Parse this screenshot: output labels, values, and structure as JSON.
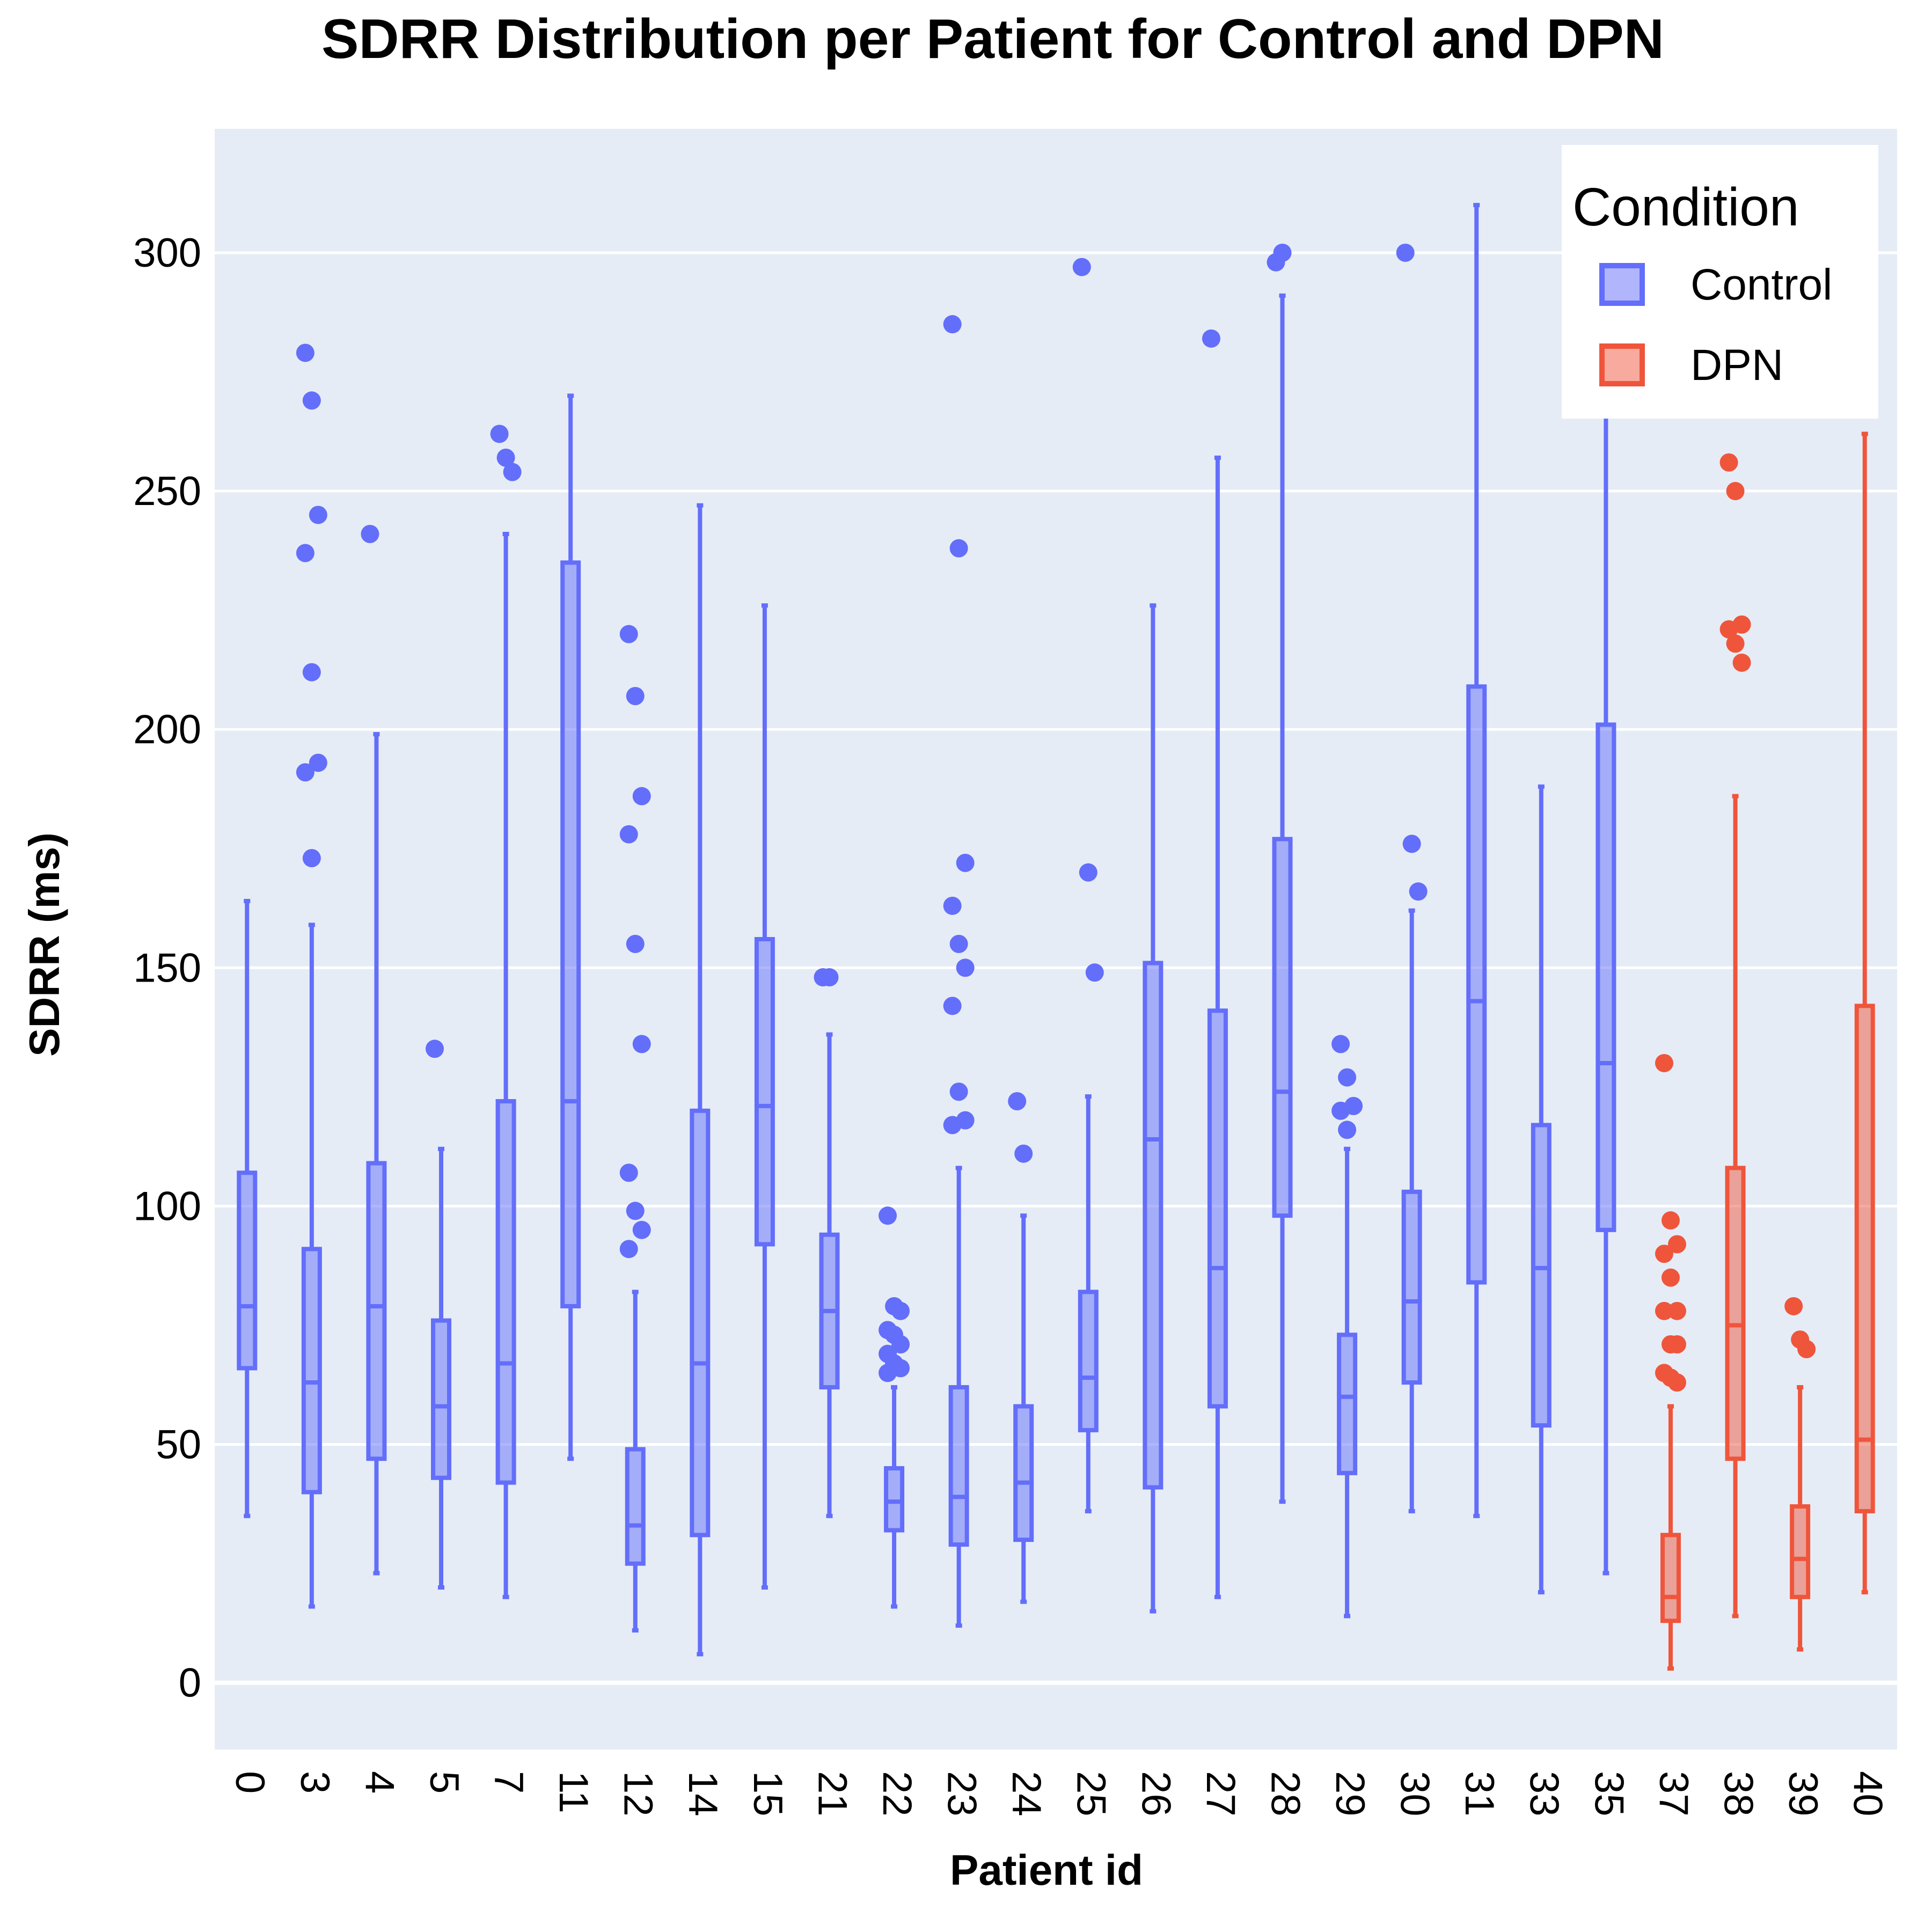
{
  "chart_data": {
    "type": "box",
    "title": "SDRR Distribution per Patient for Control and DPN",
    "xlabel": "Patient id",
    "ylabel": "SDRR (ms)",
    "ylim": [
      -14,
      326
    ],
    "yticks": [
      0,
      50,
      100,
      150,
      200,
      250,
      300
    ],
    "grid": true,
    "x_tick_rotation": 90,
    "legend": {
      "title": "Condition",
      "position": "top-right",
      "entries": [
        {
          "name": "Control",
          "color": "#636efa"
        },
        {
          "name": "DPN",
          "color": "#ef553b"
        }
      ]
    },
    "colors": {
      "Control": "#636efa",
      "DPN": "#ef553b",
      "plot_bg": "#e5ecf6",
      "grid": "#ffffff"
    },
    "categories": [
      "0",
      "3",
      "4",
      "5",
      "7",
      "11",
      "12",
      "14",
      "15",
      "21",
      "22",
      "23",
      "24",
      "25",
      "26",
      "27",
      "28",
      "29",
      "30",
      "31",
      "33",
      "35",
      "37",
      "38",
      "39",
      "40"
    ],
    "series": [
      {
        "name": "Control",
        "boxes": [
          {
            "x": "0",
            "min": 35,
            "q1": 66,
            "median": 79,
            "q3": 107,
            "max": 164,
            "outliers": []
          },
          {
            "x": "3",
            "min": 16,
            "q1": 40,
            "median": 63,
            "q3": 91,
            "max": 159,
            "outliers": [
              279,
              269,
              245,
              237,
              212,
              193,
              191,
              173
            ]
          },
          {
            "x": "4",
            "min": 23,
            "q1": 47,
            "median": 79,
            "q3": 109,
            "max": 199,
            "outliers": [
              241
            ]
          },
          {
            "x": "5",
            "min": 20,
            "q1": 43,
            "median": 58,
            "q3": 76,
            "max": 112,
            "outliers": [
              133
            ]
          },
          {
            "x": "7",
            "min": 18,
            "q1": 42,
            "median": 67,
            "q3": 122,
            "max": 241,
            "outliers": [
              262,
              257,
              254
            ]
          },
          {
            "x": "11",
            "min": 47,
            "q1": 79,
            "median": 122,
            "q3": 235,
            "max": 270,
            "outliers": []
          },
          {
            "x": "12",
            "min": 11,
            "q1": 25,
            "median": 33,
            "q3": 49,
            "max": 82,
            "outliers": [
              220,
              207,
              186,
              178,
              155,
              134,
              107,
              99,
              95,
              91
            ]
          },
          {
            "x": "14",
            "min": 6,
            "q1": 31,
            "median": 67,
            "q3": 120,
            "max": 247,
            "outliers": []
          },
          {
            "x": "15",
            "min": 20,
            "q1": 92,
            "median": 121,
            "q3": 156,
            "max": 226,
            "outliers": []
          },
          {
            "x": "21",
            "min": 35,
            "q1": 62,
            "median": 78,
            "q3": 94,
            "max": 136,
            "outliers": [
              148,
              148
            ]
          },
          {
            "x": "22",
            "min": 16,
            "q1": 32,
            "median": 38,
            "q3": 45,
            "max": 62,
            "outliers": [
              98,
              79,
              78,
              74,
              73,
              71,
              69,
              67,
              66,
              65
            ]
          },
          {
            "x": "23",
            "min": 12,
            "q1": 29,
            "median": 39,
            "q3": 62,
            "max": 108,
            "outliers": [
              285,
              238,
              172,
              163,
              155,
              150,
              142,
              124,
              118,
              117
            ]
          },
          {
            "x": "24",
            "min": 17,
            "q1": 30,
            "median": 42,
            "q3": 58,
            "max": 98,
            "outliers": [
              122,
              111
            ]
          },
          {
            "x": "25",
            "min": 36,
            "q1": 53,
            "median": 64,
            "q3": 82,
            "max": 123,
            "outliers": [
              297,
              170,
              149
            ]
          },
          {
            "x": "26",
            "min": 15,
            "q1": 41,
            "median": 114,
            "q3": 151,
            "max": 226,
            "outliers": []
          },
          {
            "x": "27",
            "min": 18,
            "q1": 58,
            "median": 87,
            "q3": 141,
            "max": 257,
            "outliers": [
              282
            ]
          },
          {
            "x": "28",
            "min": 38,
            "q1": 98,
            "median": 124,
            "q3": 177,
            "max": 291,
            "outliers": [
              298,
              300
            ]
          },
          {
            "x": "29",
            "min": 14,
            "q1": 44,
            "median": 60,
            "q3": 73,
            "max": 112,
            "outliers": [
              134,
              127,
              121,
              120,
              116
            ]
          },
          {
            "x": "30",
            "min": 36,
            "q1": 63,
            "median": 80,
            "q3": 103,
            "max": 162,
            "outliers": [
              300,
              176,
              166
            ]
          },
          {
            "x": "31",
            "min": 35,
            "q1": 84,
            "median": 143,
            "q3": 209,
            "max": 310,
            "outliers": []
          },
          {
            "x": "33",
            "min": 19,
            "q1": 54,
            "median": 87,
            "q3": 117,
            "max": 188,
            "outliers": []
          },
          {
            "x": "35",
            "min": 23,
            "q1": 95,
            "median": 130,
            "q3": 201,
            "max": 268,
            "outliers": []
          }
        ]
      },
      {
        "name": "DPN",
        "boxes": [
          {
            "x": "37",
            "min": 3,
            "q1": 13,
            "median": 18,
            "q3": 31,
            "max": 58,
            "outliers": [
              130,
              97,
              92,
              90,
              85,
              78,
              78,
              71,
              71,
              65,
              64,
              63
            ]
          },
          {
            "x": "38",
            "min": 14,
            "q1": 47,
            "median": 75,
            "q3": 108,
            "max": 186,
            "outliers": [
              256,
              250,
              222,
              221,
              218,
              214
            ]
          },
          {
            "x": "39",
            "min": 7,
            "q1": 18,
            "median": 26,
            "q3": 37,
            "max": 62,
            "outliers": [
              79,
              72,
              70
            ]
          },
          {
            "x": "40",
            "min": 19,
            "q1": 36,
            "median": 51,
            "q3": 142,
            "max": 262,
            "outliers": []
          }
        ]
      }
    ]
  }
}
